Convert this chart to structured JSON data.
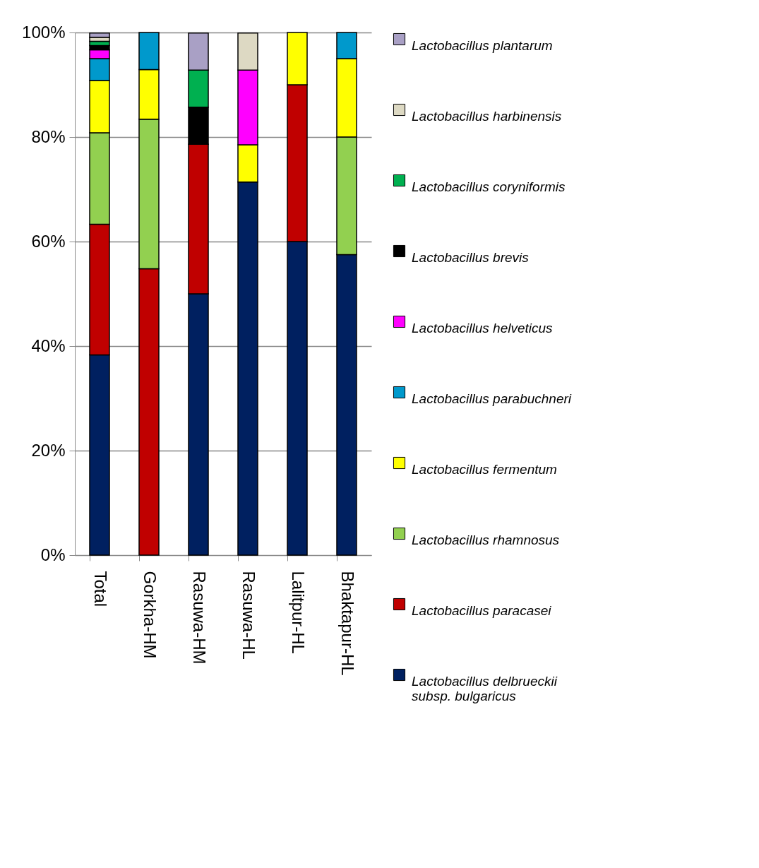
{
  "chart_data": {
    "type": "bar",
    "stacked": true,
    "categories": [
      "Total",
      "Gorkha-HM",
      "Rasuwa-HM",
      "Rasuwa-HL",
      "Lalitpur-HL",
      "Bhaktapur-HL"
    ],
    "series": [
      {
        "name": "Lactobacillus delbrueckii subsp. bulgaricus",
        "color": "#002060",
        "values": [
          38.3,
          null,
          50,
          71.4,
          60,
          57.5
        ]
      },
      {
        "name": "Lactobacillus paracasei",
        "color": "#c00000",
        "values": [
          25,
          54.8,
          28.6,
          null,
          30,
          null
        ]
      },
      {
        "name": "Lactobacillus rhamnosus",
        "color": "#92d050",
        "values": [
          17.5,
          28.6,
          null,
          null,
          null,
          22.5
        ]
      },
      {
        "name": "Lactobacillus fermentum",
        "color": "#ffff00",
        "values": [
          10,
          9.5,
          null,
          7.1,
          10,
          15
        ]
      },
      {
        "name": "Lactobacillus parabuchneri",
        "color": "#0099cc",
        "values": [
          4.2,
          7.1,
          null,
          null,
          null,
          5
        ]
      },
      {
        "name": "Lactobacillus helveticus",
        "color": "#ff00ff",
        "values": [
          1.7,
          null,
          null,
          14.3,
          null,
          null
        ]
      },
      {
        "name": "Lactobacillus brevis",
        "color": "#000000",
        "values": [
          0.8,
          null,
          7.1,
          null,
          null,
          null
        ]
      },
      {
        "name": "Lactobacillus coryniformis",
        "color": "#00b050",
        "values": [
          0.8,
          null,
          7.1,
          null,
          null,
          null
        ]
      },
      {
        "name": "Lactobacillus harbinensis",
        "color": "#ddd9c3",
        "values": [
          0.8,
          null,
          null,
          7.1,
          null,
          null
        ]
      },
      {
        "name": "Lactobacillus plantarum",
        "color": "#a9a0c5",
        "values": [
          0.8,
          null,
          7.1,
          null,
          null,
          null
        ]
      }
    ],
    "ylim": [
      0,
      100
    ],
    "yticks": [
      {
        "value": 0,
        "label": "0%"
      },
      {
        "value": 20,
        "label": "20%"
      },
      {
        "value": 40,
        "label": "40%"
      },
      {
        "value": 60,
        "label": "60%"
      },
      {
        "value": 80,
        "label": "80%"
      },
      {
        "value": 100,
        "label": "100%"
      }
    ],
    "grid": "y",
    "legend": "right"
  }
}
